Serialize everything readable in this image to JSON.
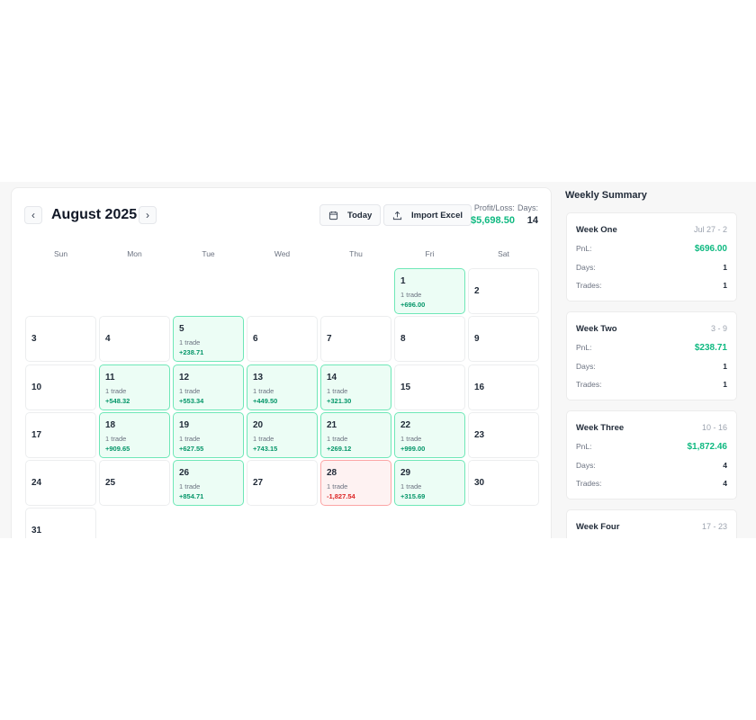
{
  "header": {
    "month_title": "August 2025",
    "today_label": "Today",
    "import_label": "Import Excel",
    "pl_label": "Profit/Loss:",
    "pl_value": "$5,698.50",
    "days_label": "Days:",
    "days_value": "14"
  },
  "colors": {
    "profit": "#10b981",
    "loss": "#dc2626",
    "profit_bg": "#ecfdf5",
    "loss_bg": "#fef2f2"
  },
  "weekdays": [
    "Sun",
    "Mon",
    "Tue",
    "Wed",
    "Thu",
    "Fri",
    "Sat"
  ],
  "first_weekday_offset": 5,
  "days": [
    {
      "day": "1",
      "trades": "1 trade",
      "pnl": "+696.00",
      "status": "win"
    },
    {
      "day": "2"
    },
    {
      "day": "3"
    },
    {
      "day": "4"
    },
    {
      "day": "5",
      "trades": "1 trade",
      "pnl": "+238.71",
      "status": "win"
    },
    {
      "day": "6"
    },
    {
      "day": "7"
    },
    {
      "day": "8"
    },
    {
      "day": "9"
    },
    {
      "day": "10"
    },
    {
      "day": "11",
      "trades": "1 trade",
      "pnl": "+548.32",
      "status": "win"
    },
    {
      "day": "12",
      "trades": "1 trade",
      "pnl": "+553.34",
      "status": "win"
    },
    {
      "day": "13",
      "trades": "1 trade",
      "pnl": "+449.50",
      "status": "win"
    },
    {
      "day": "14",
      "trades": "1 trade",
      "pnl": "+321.30",
      "status": "win"
    },
    {
      "day": "15"
    },
    {
      "day": "16"
    },
    {
      "day": "17"
    },
    {
      "day": "18",
      "trades": "1 trade",
      "pnl": "+909.65",
      "status": "win"
    },
    {
      "day": "19",
      "trades": "1 trade",
      "pnl": "+627.55",
      "status": "win"
    },
    {
      "day": "20",
      "trades": "1 trade",
      "pnl": "+743.15",
      "status": "win"
    },
    {
      "day": "21",
      "trades": "1 trade",
      "pnl": "+269.12",
      "status": "win"
    },
    {
      "day": "22",
      "trades": "1 trade",
      "pnl": "+999.00",
      "status": "win"
    },
    {
      "day": "23"
    },
    {
      "day": "24"
    },
    {
      "day": "25"
    },
    {
      "day": "26",
      "trades": "1 trade",
      "pnl": "+854.71",
      "status": "win"
    },
    {
      "day": "27"
    },
    {
      "day": "28",
      "trades": "1 trade",
      "pnl": "-1,827.54",
      "status": "loss"
    },
    {
      "day": "29",
      "trades": "1 trade",
      "pnl": "+315.69",
      "status": "win"
    },
    {
      "day": "30"
    },
    {
      "day": "31"
    }
  ],
  "summary": {
    "title": "Weekly Summary",
    "pnl_label": "PnL:",
    "days_label": "Days:",
    "trades_label": "Trades:",
    "weeks": [
      {
        "name": "Week One",
        "range": "Jul 27 - 2",
        "pnl": "$696.00",
        "days": "1",
        "trades": "1"
      },
      {
        "name": "Week Two",
        "range": "3 - 9",
        "pnl": "$238.71",
        "days": "1",
        "trades": "1"
      },
      {
        "name": "Week Three",
        "range": "10 - 16",
        "pnl": "$1,872.46",
        "days": "4",
        "trades": "4"
      },
      {
        "name": "Week Four",
        "range": "17 - 23"
      }
    ]
  }
}
